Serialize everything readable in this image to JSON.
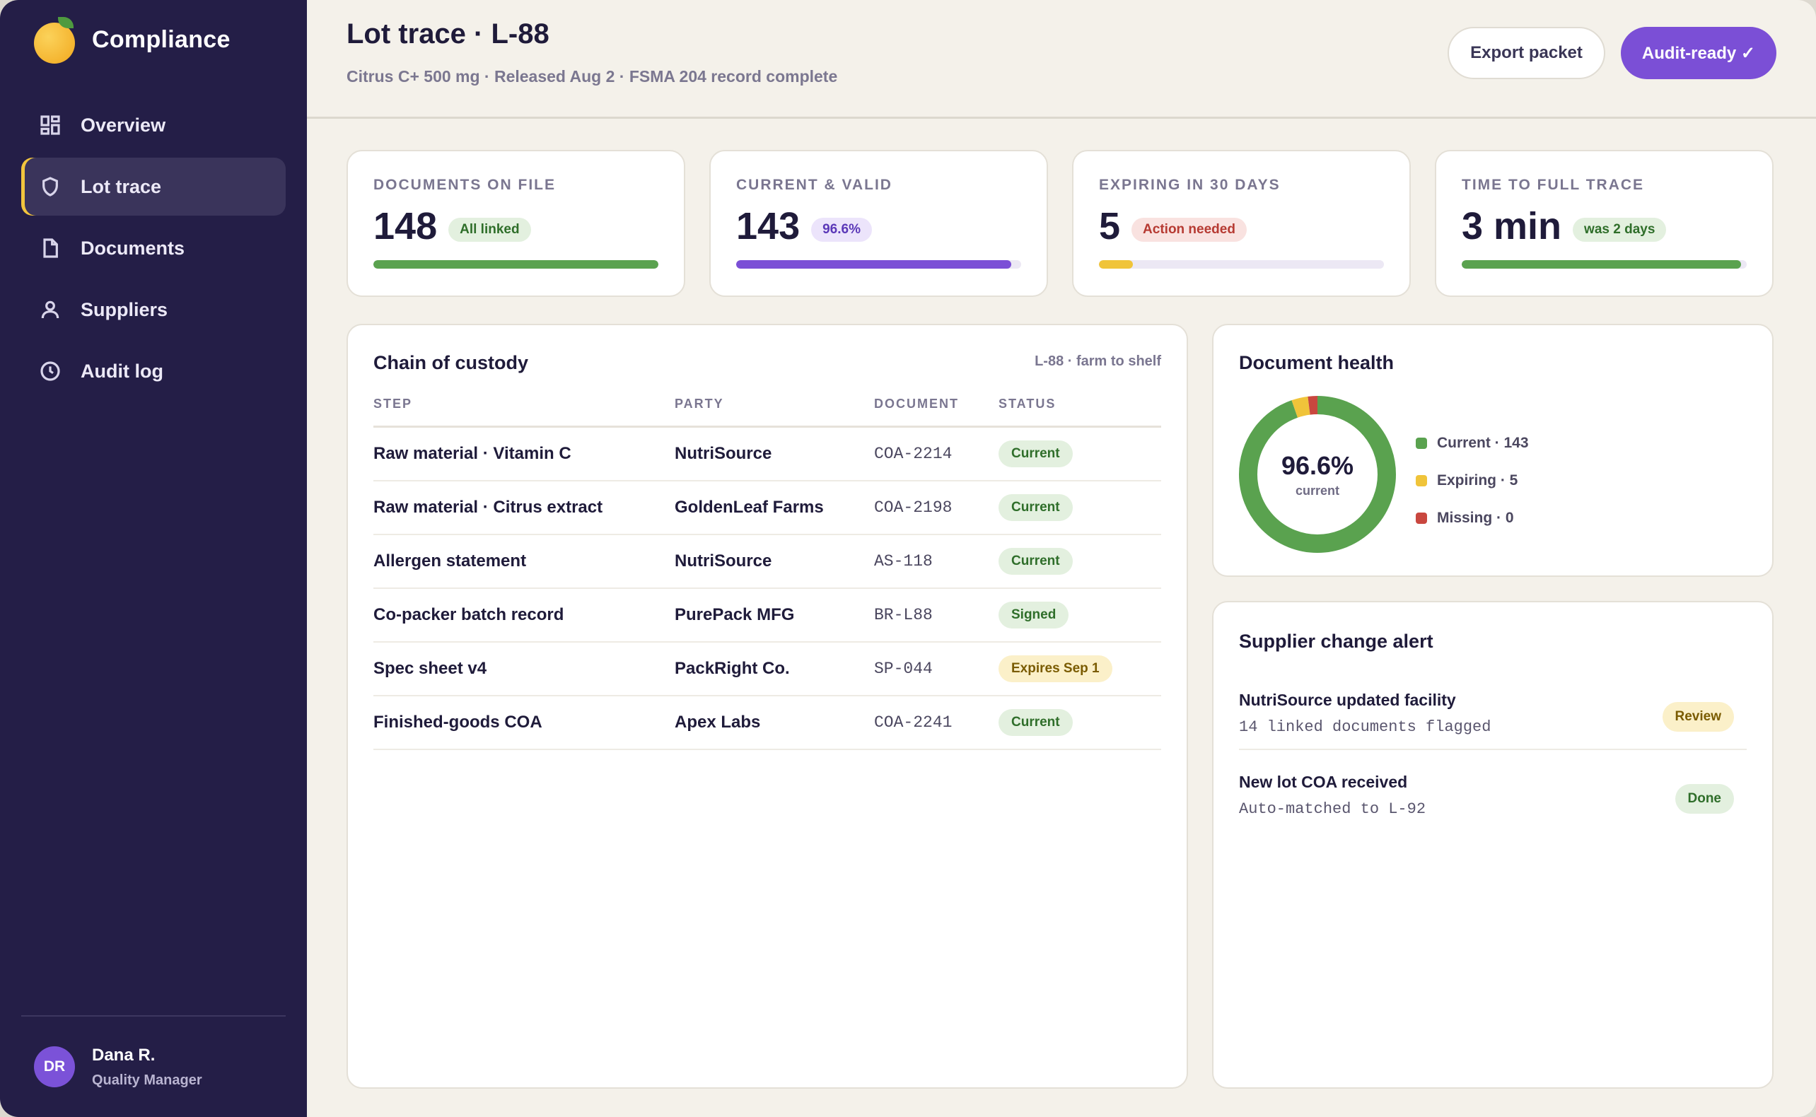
{
  "sidebar": {
    "brand": "Compliance",
    "items": [
      {
        "label": "Overview",
        "icon": "grid-icon"
      },
      {
        "label": "Lot trace",
        "icon": "shield-icon"
      },
      {
        "label": "Documents",
        "icon": "document-icon"
      },
      {
        "label": "Suppliers",
        "icon": "user-icon"
      },
      {
        "label": "Audit log",
        "icon": "clock-icon"
      }
    ],
    "active_index": 1,
    "user": {
      "initials": "DR",
      "name": "Dana R.",
      "role": "Quality Manager"
    }
  },
  "header": {
    "title": "Lot trace · L-88",
    "subtitle": "Citrus C+ 500 mg · Released Aug 2 · FSMA 204 record complete",
    "export_label": "Export packet",
    "audit_label": "Audit-ready ✓"
  },
  "stats": [
    {
      "label": "DOCUMENTS ON FILE",
      "value": "148",
      "badge": "All linked",
      "badge_tone": "green",
      "progress": 1.0,
      "color": "#5aa24f"
    },
    {
      "label": "CURRENT & VALID",
      "value": "143",
      "badge": "96.6%",
      "badge_tone": "purple",
      "progress": 0.966,
      "color": "#7b4fd6"
    },
    {
      "label": "EXPIRING IN 30 DAYS",
      "value": "5",
      "badge": "Action needed",
      "badge_tone": "red",
      "progress": 0.12,
      "color": "#f0c43a"
    },
    {
      "label": "TIME TO FULL TRACE",
      "value": "3 min",
      "badge": "was 2 days",
      "badge_tone": "green",
      "progress": 0.98,
      "color": "#5aa24f"
    }
  ],
  "chain": {
    "title": "Chain of custody",
    "meta": "L-88 · farm to shelf",
    "columns": [
      "STEP",
      "PARTY",
      "DOCUMENT",
      "STATUS"
    ],
    "rows": [
      {
        "step": "Raw material · Vitamin C",
        "party": "NutriSource",
        "document": "COA-2214",
        "status": "Current",
        "tone": "green"
      },
      {
        "step": "Raw material · Citrus extract",
        "party": "GoldenLeaf Farms",
        "document": "COA-2198",
        "status": "Current",
        "tone": "green"
      },
      {
        "step": "Allergen statement",
        "party": "NutriSource",
        "document": "AS-118",
        "status": "Current",
        "tone": "green"
      },
      {
        "step": "Co-packer batch record",
        "party": "PurePack MFG",
        "document": "BR-L88",
        "status": "Signed",
        "tone": "green"
      },
      {
        "step": "Spec sheet v4",
        "party": "PackRight Co.",
        "document": "SP-044",
        "status": "Expires Sep 1",
        "tone": "yellow"
      },
      {
        "step": "Finished-goods COA",
        "party": "Apex Labs",
        "document": "COA-2241",
        "status": "Current",
        "tone": "green"
      }
    ]
  },
  "health": {
    "title": "Document health",
    "center_value": "96.6%",
    "center_label": "current",
    "segments": [
      {
        "label": "Current · 143",
        "value": 143,
        "color": "#5aa24f"
      },
      {
        "label": "Expiring · 5",
        "value": 5,
        "color": "#f0c43a"
      },
      {
        "label": "Missing · 0",
        "value": 0,
        "color": "#c9473f"
      }
    ]
  },
  "alerts": {
    "title": "Supplier change alert",
    "items": [
      {
        "title": "NutriSource updated facility",
        "sub": "14 linked documents flagged",
        "badge": "Review",
        "tone": "yellow"
      },
      {
        "title": "New lot COA received",
        "sub": "Auto-matched to L-92",
        "badge": "Done",
        "tone": "green"
      }
    ]
  }
}
